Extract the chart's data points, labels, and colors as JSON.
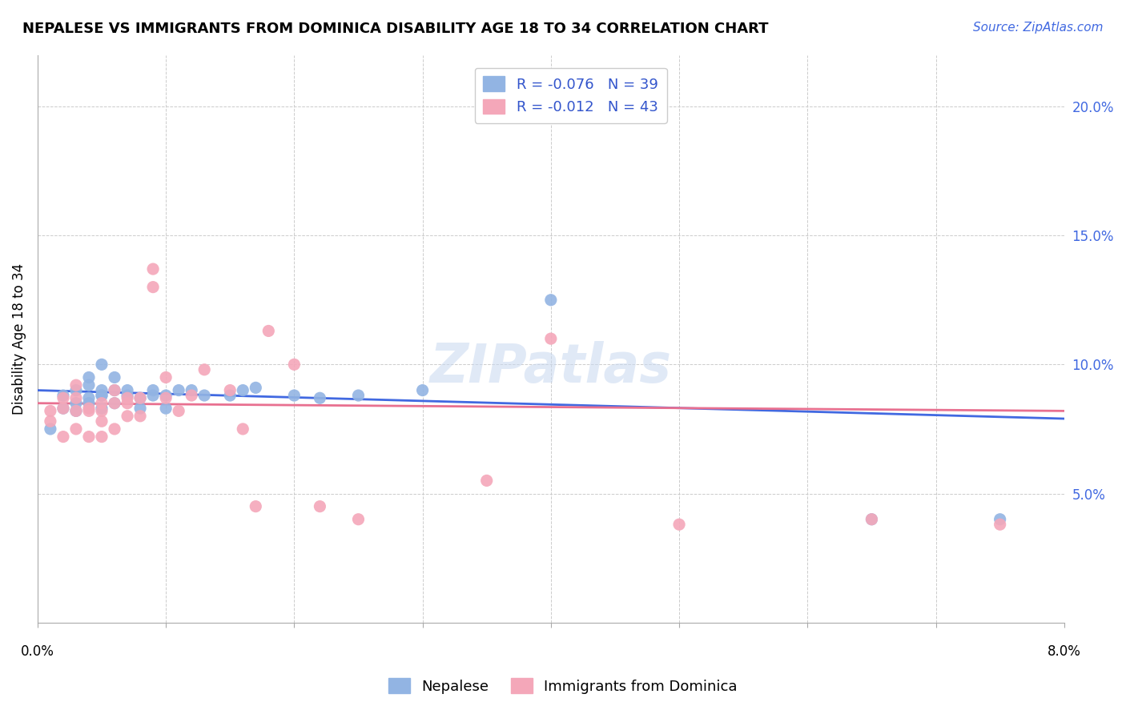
{
  "title": "NEPALESE VS IMMIGRANTS FROM DOMINICA DISABILITY AGE 18 TO 34 CORRELATION CHART",
  "source": "Source: ZipAtlas.com",
  "ylabel": "Disability Age 18 to 34",
  "ytick_values": [
    0.0,
    0.05,
    0.1,
    0.15,
    0.2
  ],
  "ytick_labels": [
    "",
    "5.0%",
    "10.0%",
    "15.0%",
    "20.0%"
  ],
  "xlim": [
    0.0,
    0.08
  ],
  "ylim": [
    0.0,
    0.22
  ],
  "watermark": "ZIPatlas",
  "blue_color": "#92b4e3",
  "pink_color": "#f4a7b9",
  "blue_line_color": "#4169e1",
  "pink_line_color": "#e87090",
  "nepalese_x": [
    0.001,
    0.002,
    0.002,
    0.003,
    0.003,
    0.003,
    0.004,
    0.004,
    0.004,
    0.004,
    0.005,
    0.005,
    0.005,
    0.005,
    0.005,
    0.006,
    0.006,
    0.006,
    0.007,
    0.007,
    0.008,
    0.008,
    0.009,
    0.009,
    0.01,
    0.01,
    0.011,
    0.012,
    0.013,
    0.015,
    0.016,
    0.017,
    0.02,
    0.022,
    0.025,
    0.03,
    0.04,
    0.065,
    0.075
  ],
  "nepalese_y": [
    0.075,
    0.088,
    0.083,
    0.085,
    0.09,
    0.082,
    0.085,
    0.087,
    0.092,
    0.095,
    0.083,
    0.088,
    0.09,
    0.1,
    0.088,
    0.085,
    0.09,
    0.095,
    0.088,
    0.09,
    0.083,
    0.087,
    0.088,
    0.09,
    0.083,
    0.088,
    0.09,
    0.09,
    0.088,
    0.088,
    0.09,
    0.091,
    0.088,
    0.087,
    0.088,
    0.09,
    0.125,
    0.04,
    0.04
  ],
  "dominica_x": [
    0.001,
    0.001,
    0.002,
    0.002,
    0.002,
    0.003,
    0.003,
    0.003,
    0.003,
    0.004,
    0.004,
    0.004,
    0.005,
    0.005,
    0.005,
    0.005,
    0.006,
    0.006,
    0.006,
    0.007,
    0.007,
    0.007,
    0.008,
    0.008,
    0.009,
    0.009,
    0.01,
    0.01,
    0.011,
    0.012,
    0.013,
    0.015,
    0.016,
    0.017,
    0.018,
    0.02,
    0.022,
    0.025,
    0.035,
    0.04,
    0.05,
    0.065,
    0.075
  ],
  "dominica_y": [
    0.082,
    0.078,
    0.083,
    0.087,
    0.072,
    0.082,
    0.087,
    0.075,
    0.092,
    0.083,
    0.082,
    0.072,
    0.078,
    0.082,
    0.085,
    0.072,
    0.085,
    0.09,
    0.075,
    0.08,
    0.087,
    0.085,
    0.087,
    0.08,
    0.137,
    0.13,
    0.087,
    0.095,
    0.082,
    0.088,
    0.098,
    0.09,
    0.075,
    0.045,
    0.113,
    0.1,
    0.045,
    0.04,
    0.055,
    0.11,
    0.038,
    0.04,
    0.038
  ],
  "blue_trendline_x": [
    0.0,
    0.08
  ],
  "blue_trendline_y": [
    0.09,
    0.079
  ],
  "pink_trendline_x": [
    0.0,
    0.08
  ],
  "pink_trendline_y": [
    0.085,
    0.082
  ]
}
